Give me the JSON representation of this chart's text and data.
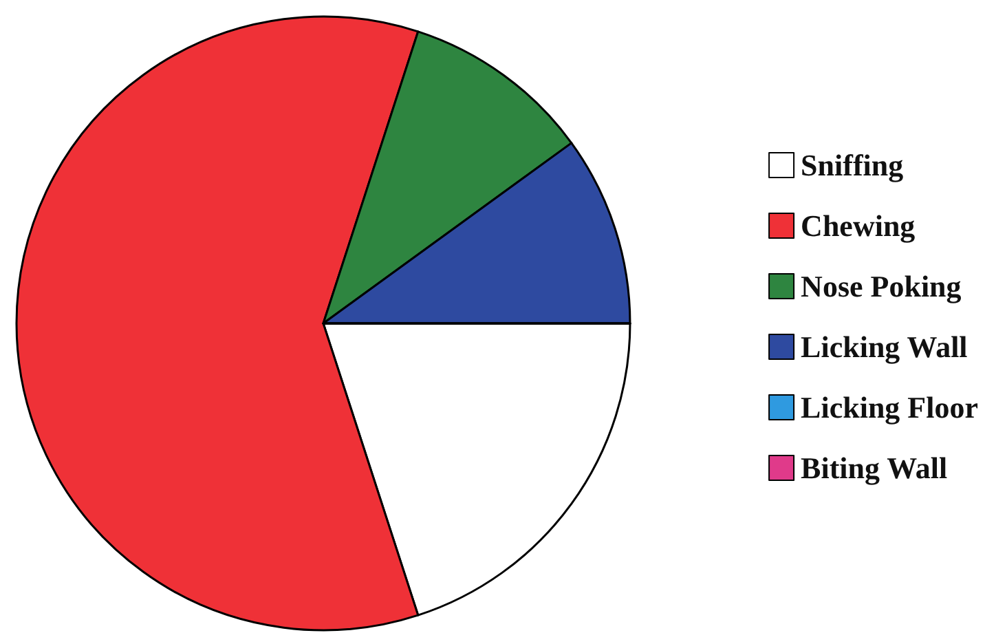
{
  "chart_data": {
    "type": "pie",
    "categories": [
      "Sniffing",
      "Chewing",
      "Nose Poking",
      "Licking Wall",
      "Licking Floor",
      "Biting Wall"
    ],
    "values": [
      20,
      60,
      10,
      10,
      0,
      0
    ],
    "colors": [
      "#ffffff",
      "#ef3137",
      "#2e8540",
      "#2e4aa0",
      "#2f9ae0",
      "#e03a8a"
    ],
    "legend": "right"
  }
}
